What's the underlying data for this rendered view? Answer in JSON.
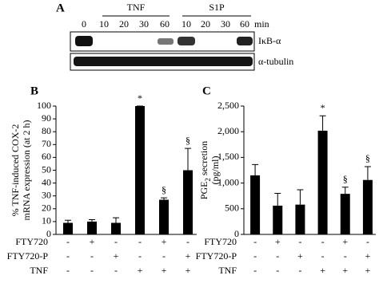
{
  "blot": {
    "label": "A",
    "groups": [
      "TNF",
      "S1P"
    ],
    "lanes": [
      "0",
      "10",
      "20",
      "30",
      "60",
      "10",
      "20",
      "30",
      "60"
    ],
    "unit": "min",
    "rows": [
      "IκB-α",
      "α-tubulin"
    ]
  },
  "chart_data": [
    {
      "type": "bar",
      "panel": "B",
      "ylabel": [
        "% TNF-induced COX-2",
        "mRNA expression (at 2 h)"
      ],
      "values": [
        9,
        10,
        9,
        100,
        27,
        50
      ],
      "errors": [
        2,
        1.5,
        4,
        0,
        1.5,
        17
      ],
      "annotations": [
        null,
        null,
        null,
        "*",
        "§",
        "§"
      ],
      "treatments": [
        {
          "name": "FTY720",
          "signs": [
            "-",
            "+",
            "-",
            "-",
            "+",
            "-"
          ]
        },
        {
          "name": "FTY720-P",
          "signs": [
            "-",
            "-",
            "+",
            "-",
            "-",
            "+"
          ]
        },
        {
          "name": "TNF",
          "signs": [
            "-",
            "-",
            "-",
            "+",
            "+",
            "+"
          ]
        }
      ],
      "color": "#000000",
      "ylim": [
        0,
        100
      ],
      "yticks": [
        0,
        10,
        20,
        30,
        40,
        50,
        60,
        70,
        80,
        90,
        100
      ]
    },
    {
      "type": "bar",
      "panel": "C",
      "ylabel": {
        "main": "PGE",
        "sub": "2",
        "rest": " secretion",
        "line2": "(pg/ml)"
      },
      "values": [
        1150,
        560,
        580,
        2020,
        790,
        1060
      ],
      "errors": [
        210,
        240,
        290,
        290,
        130,
        260
      ],
      "annotations": [
        null,
        null,
        null,
        "*",
        "§",
        "§"
      ],
      "treatments": [
        {
          "name": "FTY720",
          "signs": [
            "-",
            "+",
            "-",
            "-",
            "+",
            "-"
          ]
        },
        {
          "name": "FTY720-P",
          "signs": [
            "-",
            "-",
            "+",
            "-",
            "-",
            "+"
          ]
        },
        {
          "name": "TNF",
          "signs": [
            "-",
            "-",
            "-",
            "+",
            "+",
            "+"
          ]
        }
      ],
      "color": "#000000",
      "ylim": [
        0,
        2500
      ],
      "yticks": [
        0,
        500,
        {
          "value": 1000,
          "label": "1,000"
        },
        {
          "value": 1500,
          "label": "1,500"
        },
        {
          "value": 2000,
          "label": "2,000"
        },
        {
          "value": 2500,
          "label": "2,500"
        }
      ]
    }
  ]
}
